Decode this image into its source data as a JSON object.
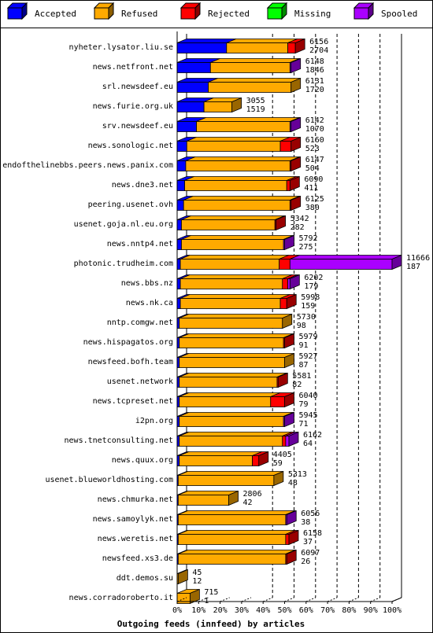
{
  "chart_data": {
    "type": "bar",
    "orientation": "horizontal",
    "stacked": true,
    "style": "3d",
    "title": "",
    "xlabel": "Outgoing feeds (innfeed) by articles",
    "ylabel": "",
    "xlim": [
      0,
      100
    ],
    "x_unit": "%",
    "x_ticks": [
      "0%",
      "10%",
      "20%",
      "30%",
      "40%",
      "50%",
      "60%",
      "70%",
      "80%",
      "90%",
      "100%"
    ],
    "grid": "dashed vertical lines",
    "legend_placement": "top",
    "series": [
      {
        "name": "Accepted",
        "color": "#0000ff"
      },
      {
        "name": "Refused",
        "color": "#ffaa00"
      },
      {
        "name": "Rejected",
        "color": "#ff0000"
      },
      {
        "name": "Missing",
        "color": "#00ff00"
      },
      {
        "name": "Spooled",
        "color": "#aa00ff"
      }
    ],
    "rows": [
      {
        "host": "nyheter.lysator.liu.se",
        "total": "6156",
        "accepted_label": "2704",
        "pct": [
          23,
          28.5,
          3.5,
          0,
          0
        ]
      },
      {
        "host": "news.netfront.net",
        "total": "6148",
        "accepted_label": "1846",
        "pct": [
          15.5,
          37,
          0,
          0,
          0.5
        ]
      },
      {
        "host": "srl.newsdeef.eu",
        "total": "6131",
        "accepted_label": "1720",
        "pct": [
          14.5,
          38.5,
          0,
          0,
          0
        ]
      },
      {
        "host": "news.furie.org.uk",
        "total": "3055",
        "accepted_label": "1519",
        "pct": [
          12.5,
          13,
          0,
          0,
          0
        ]
      },
      {
        "host": "srv.newsdeef.eu",
        "total": "6142",
        "accepted_label": "1070",
        "pct": [
          9,
          43.5,
          0,
          0,
          0.5
        ]
      },
      {
        "host": "news.sonologic.net",
        "total": "6160",
        "accepted_label": "523",
        "pct": [
          4.5,
          43.5,
          5,
          0,
          0
        ]
      },
      {
        "host": "endofthelinebbs.peers.news.panix.com",
        "total": "6147",
        "accepted_label": "504",
        "pct": [
          4,
          48.5,
          0.5,
          0,
          0
        ]
      },
      {
        "host": "news.dne3.net",
        "total": "6090",
        "accepted_label": "411",
        "pct": [
          3.5,
          47.5,
          1.5,
          0,
          0
        ]
      },
      {
        "host": "peering.usenet.ovh",
        "total": "6125",
        "accepted_label": "380",
        "pct": [
          3,
          49.5,
          0.5,
          0,
          0
        ]
      },
      {
        "host": "usenet.goja.nl.eu.org",
        "total": "5342",
        "accepted_label": "282",
        "pct": [
          2,
          43.5,
          0.5,
          0,
          0
        ]
      },
      {
        "host": "news.nntp4.net",
        "total": "5792",
        "accepted_label": "275",
        "pct": [
          2,
          47.5,
          0,
          0,
          0.5
        ]
      },
      {
        "host": "photonic.trudheim.com",
        "total": "11666",
        "accepted_label": "187",
        "pct": [
          1.5,
          46,
          5,
          0,
          47.5
        ]
      },
      {
        "host": "news.bbs.nz",
        "total": "6202",
        "accepted_label": "179",
        "pct": [
          1.5,
          47.5,
          2.5,
          0,
          1
        ]
      },
      {
        "host": "news.nk.ca",
        "total": "5998",
        "accepted_label": "159",
        "pct": [
          1.5,
          46.5,
          3,
          0,
          0
        ]
      },
      {
        "host": "nntp.comgw.net",
        "total": "5730",
        "accepted_label": "98",
        "pct": [
          1,
          48,
          0,
          0,
          0
        ]
      },
      {
        "host": "news.hispagatos.org",
        "total": "5979",
        "accepted_label": "91",
        "pct": [
          1,
          48.5,
          0.5,
          0,
          0
        ]
      },
      {
        "host": "newsfeed.bofh.team",
        "total": "5927",
        "accepted_label": "87",
        "pct": [
          1,
          49,
          0,
          0,
          0
        ]
      },
      {
        "host": "usenet.network",
        "total": "5581",
        "accepted_label": "82",
        "pct": [
          1,
          45.5,
          0.5,
          0,
          0
        ]
      },
      {
        "host": "news.tcpreset.net",
        "total": "6040",
        "accepted_label": "79",
        "pct": [
          1,
          42.5,
          6.5,
          0,
          0
        ]
      },
      {
        "host": "i2pn.org",
        "total": "5945",
        "accepted_label": "71",
        "pct": [
          1,
          48.5,
          0,
          0,
          0.5
        ]
      },
      {
        "host": "news.tnetconsulting.net",
        "total": "6162",
        "accepted_label": "64",
        "pct": [
          1,
          48,
          1.5,
          0,
          1.5
        ]
      },
      {
        "host": "news.quux.org",
        "total": "4405",
        "accepted_label": "59",
        "pct": [
          1,
          34,
          3,
          0,
          0
        ]
      },
      {
        "host": "usenet.blueworldhosting.com",
        "total": "5313",
        "accepted_label": "48",
        "pct": [
          0.5,
          44.5,
          0,
          0,
          0
        ]
      },
      {
        "host": "news.chmurka.net",
        "total": "2806",
        "accepted_label": "42",
        "pct": [
          0.5,
          23.5,
          0,
          0,
          0
        ]
      },
      {
        "host": "news.samoylyk.net",
        "total": "6056",
        "accepted_label": "38",
        "pct": [
          0.5,
          50,
          0,
          0,
          0.5
        ]
      },
      {
        "host": "news.weretis.net",
        "total": "6158",
        "accepted_label": "37",
        "pct": [
          0.5,
          50,
          1.5,
          0,
          0
        ]
      },
      {
        "host": "newsfeed.xs3.de",
        "total": "6097",
        "accepted_label": "26",
        "pct": [
          0.5,
          50,
          0.5,
          0,
          0
        ]
      },
      {
        "host": "ddt.demos.su",
        "total": "45",
        "accepted_label": "12",
        "pct": [
          0,
          0.5,
          0,
          0,
          0
        ]
      },
      {
        "host": "news.corradoroberto.it",
        "total": "715",
        "accepted_label": "1",
        "pct": [
          0,
          6,
          0,
          0,
          0
        ]
      }
    ]
  }
}
